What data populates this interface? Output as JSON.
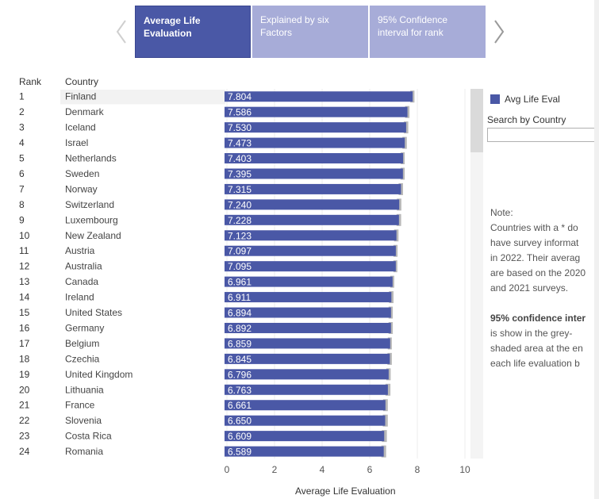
{
  "tabs": [
    {
      "label_line1": "Average Life",
      "label_line2": "Evaluation",
      "active": true
    },
    {
      "label_line1": "Explained by six",
      "label_line2": "Factors",
      "active": false
    },
    {
      "label_line1": "95% Confidence",
      "label_line2": "interval for rank",
      "active": false
    }
  ],
  "columns": {
    "rank": "Rank",
    "country": "Country"
  },
  "legend": {
    "label": "Avg Life Eval",
    "color": "#4a58a6"
  },
  "search": {
    "label": "Search by Country",
    "value": ""
  },
  "note": {
    "title": "Note:",
    "lines": [
      "Countries with a * do",
      "have survey informat",
      "in 2022. Their averag",
      "are based on the 2020",
      "and 2021 surveys."
    ],
    "ci_bold": "95% confidence inter",
    "ci_lines": [
      "is show in the grey-",
      "shaded area at the en",
      "each life evaluation b"
    ]
  },
  "chart_data": {
    "type": "bar",
    "orientation": "horizontal",
    "xlabel": "Average Life Evaluation",
    "xlim": [
      0,
      10
    ],
    "xticks": [
      0,
      2,
      4,
      6,
      8,
      10
    ],
    "bar_color": "#4a58a6",
    "ci_color": "#b8b8b8",
    "rows": [
      {
        "rank": "1",
        "country": "Finland",
        "value": 7.804,
        "label": "7.804",
        "ci_high": 7.88
      },
      {
        "rank": "2",
        "country": "Denmark",
        "value": 7.586,
        "label": "7.586",
        "ci_high": 7.67
      },
      {
        "rank": "3",
        "country": "Iceland",
        "value": 7.53,
        "label": "7.530",
        "ci_high": 7.62
      },
      {
        "rank": "4",
        "country": "Israel",
        "value": 7.473,
        "label": "7.473",
        "ci_high": 7.56
      },
      {
        "rank": "5",
        "country": "Netherlands",
        "value": 7.403,
        "label": "7.403",
        "ci_high": 7.47
      },
      {
        "rank": "6",
        "country": "Sweden",
        "value": 7.395,
        "label": "7.395",
        "ci_high": 7.47
      },
      {
        "rank": "7",
        "country": "Norway",
        "value": 7.315,
        "label": "7.315",
        "ci_high": 7.4
      },
      {
        "rank": "8",
        "country": "Switzerland",
        "value": 7.24,
        "label": "7.240",
        "ci_high": 7.33
      },
      {
        "rank": "9",
        "country": "Luxembourg",
        "value": 7.228,
        "label": "7.228",
        "ci_high": 7.32
      },
      {
        "rank": "10",
        "country": "New Zealand",
        "value": 7.123,
        "label": "7.123",
        "ci_high": 7.21
      },
      {
        "rank": "11",
        "country": "Austria",
        "value": 7.097,
        "label": "7.097",
        "ci_high": 7.17
      },
      {
        "rank": "12",
        "country": "Australia",
        "value": 7.095,
        "label": "7.095",
        "ci_high": 7.16
      },
      {
        "rank": "13",
        "country": "Canada",
        "value": 6.961,
        "label": "6.961",
        "ci_high": 7.03
      },
      {
        "rank": "14",
        "country": "Ireland",
        "value": 6.911,
        "label": "6.911",
        "ci_high": 7.0
      },
      {
        "rank": "15",
        "country": "United States",
        "value": 6.894,
        "label": "6.894",
        "ci_high": 6.97
      },
      {
        "rank": "16",
        "country": "Germany",
        "value": 6.892,
        "label": "6.892",
        "ci_high": 6.97
      },
      {
        "rank": "17",
        "country": "Belgium",
        "value": 6.859,
        "label": "6.859",
        "ci_high": 6.93
      },
      {
        "rank": "18",
        "country": "Czechia",
        "value": 6.845,
        "label": "6.845",
        "ci_high": 6.93
      },
      {
        "rank": "19",
        "country": "United Kingdom",
        "value": 6.796,
        "label": "6.796",
        "ci_high": 6.88
      },
      {
        "rank": "20",
        "country": "Lithuania",
        "value": 6.763,
        "label": "6.763",
        "ci_high": 6.87
      },
      {
        "rank": "21",
        "country": "France",
        "value": 6.661,
        "label": "6.661",
        "ci_high": 6.76
      },
      {
        "rank": "22",
        "country": "Slovenia",
        "value": 6.65,
        "label": "6.650",
        "ci_high": 6.76
      },
      {
        "rank": "23",
        "country": "Costa Rica",
        "value": 6.609,
        "label": "6.609",
        "ci_high": 6.72
      },
      {
        "rank": "24",
        "country": "Romania",
        "value": 6.589,
        "label": "6.589",
        "ci_high": 6.69
      }
    ]
  }
}
